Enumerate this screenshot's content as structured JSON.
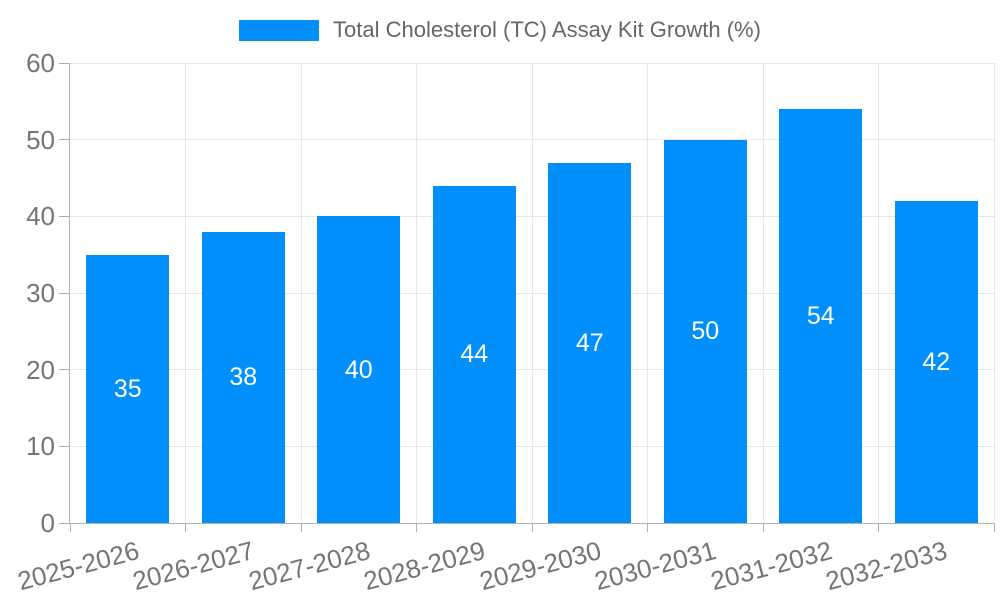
{
  "chart_data": {
    "type": "bar",
    "title": "Total Cholesterol (TC) Assay Kit Growth (%)",
    "legend_label": "Total Cholesterol (TC) Assay Kit Growth (%)",
    "legend_position": "top-center",
    "categories": [
      "2025-2026",
      "2026-2027",
      "2027-2028",
      "2028-2029",
      "2029-2030",
      "2030-2031",
      "2031-2032",
      "2032-2033"
    ],
    "values": [
      35,
      38,
      40,
      44,
      47,
      50,
      54,
      42
    ],
    "xlabel": "",
    "ylabel": "",
    "ylim": [
      0,
      60
    ],
    "yticks": [
      0,
      10,
      20,
      30,
      40,
      50,
      60
    ],
    "grid": true,
    "x_label_rotation_deg": -15,
    "bar_labels_inside": true
  },
  "colors": {
    "bar": "#008FFB",
    "grid": "#e6e6e6",
    "axis": "#b0b0b0",
    "tick_text": "#757575",
    "legend_text": "#666666",
    "bar_label": "#ffffff",
    "background": "#ffffff"
  }
}
